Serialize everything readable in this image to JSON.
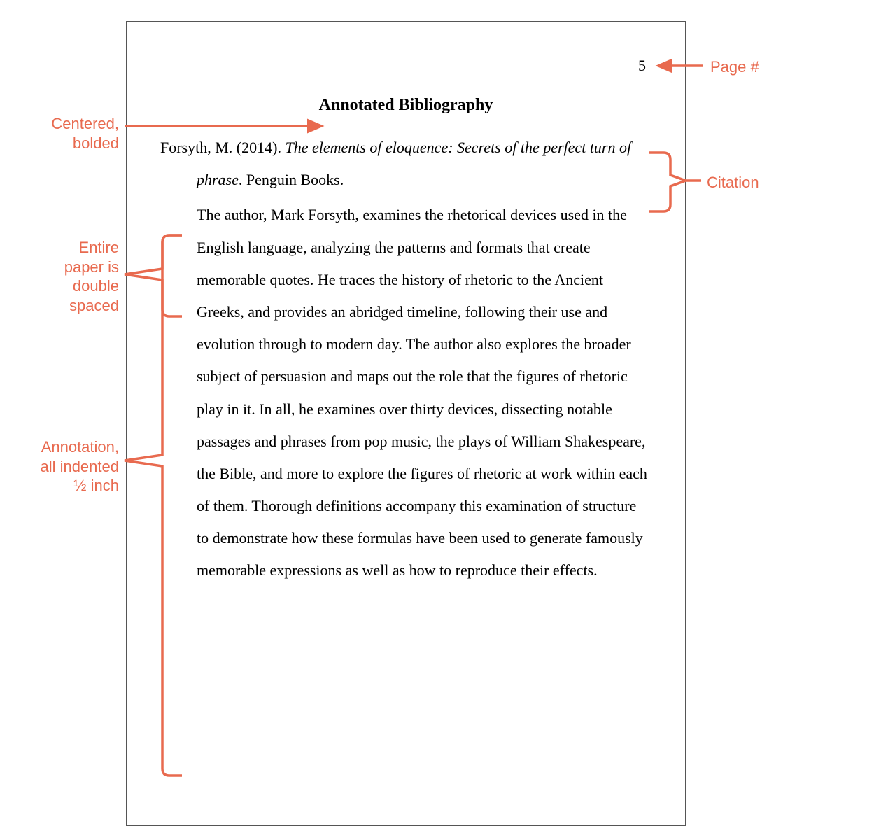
{
  "page": {
    "number": "5",
    "title": "Annotated Bibliography",
    "citation_plain": "Forsyth, M. (2014). ",
    "citation_italic": "The elements of eloquence: Secrets of the perfect turn of phrase",
    "citation_after": ". Penguin Books.",
    "annotation": "The author, Mark Forsyth, examines the rhetorical devices used in the English language, analyzing the patterns and formats that create memorable quotes. He traces the history of rhetoric to the Ancient Greeks, and provides an abridged timeline, following their use and evolution through to modern day. The author also explores the broader subject of persuasion and maps out the role that the figures of rhetoric play in it. In all, he examines over thirty devices, dissecting notable passages and phrases from pop music, the plays of William Shakespeare, the Bible, and more to explore the figures of rhetoric at work within each of them. Thorough definitions accompany this examination of structure to demonstrate how these formulas have been used to generate famously memorable expressions as well as how to reproduce their effects."
  },
  "callouts": {
    "page_label": "Page #",
    "centered_bold": "Centered,\nbolded",
    "citation_label": "Citation",
    "double_spaced": "Entire\npaper is\ndouble\nspaced",
    "annotation_indent": "Annotation,\nall indented\n½ inch"
  },
  "style": {
    "callout_color": "#e86a4f",
    "text_color": "#000000",
    "border_color": "#555555",
    "font_body": "Times New Roman",
    "font_callout": "Arial",
    "font_size_body_pt": 16,
    "font_size_callout_pt": 16,
    "line_height_multiplier": 2.1,
    "annotation_indent_inches": 0.5,
    "arrow_stroke_width": 3.5
  }
}
